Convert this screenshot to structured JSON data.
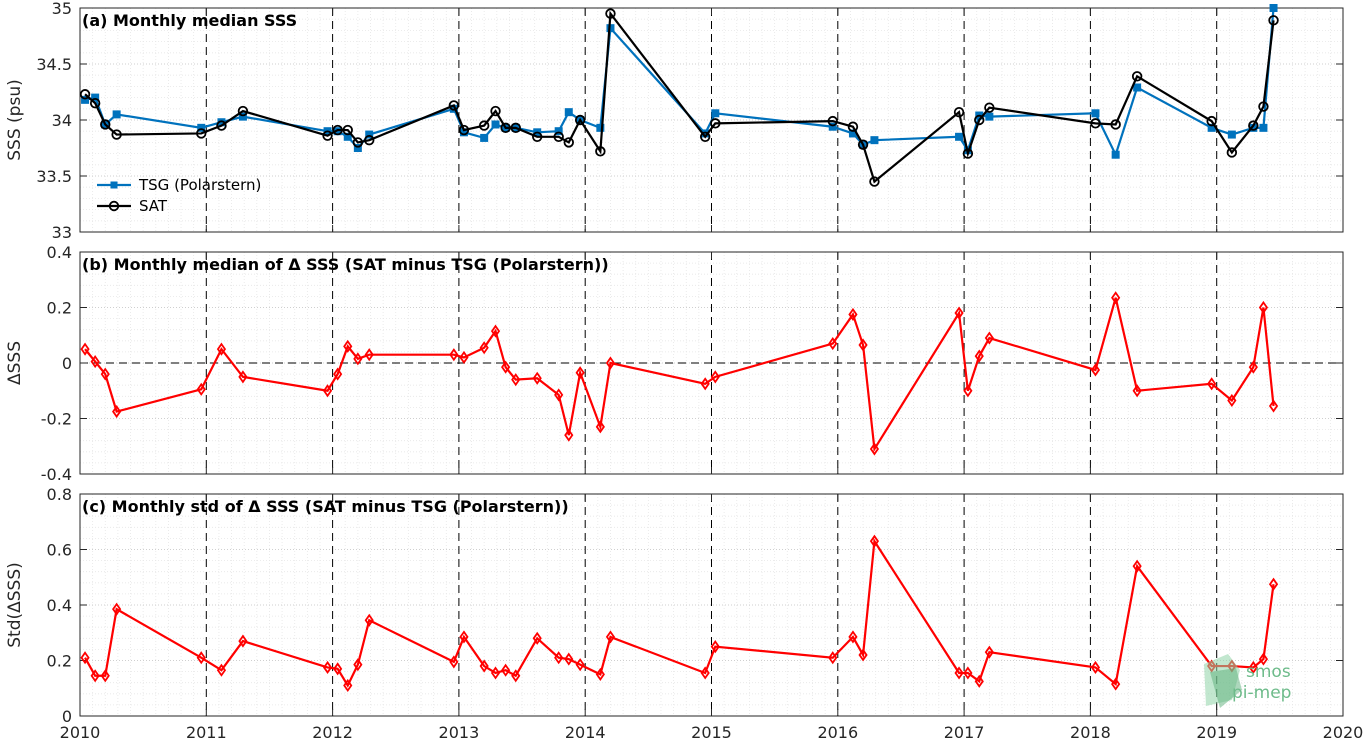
{
  "colors": {
    "tsg": "#0072BD",
    "sat": "#000000",
    "delta": "#FF0000",
    "grid": "#d6d6d6"
  },
  "logo": {
    "line1": "smos",
    "line2": "pi-mep"
  },
  "chart_data": [
    {
      "type": "line",
      "title": "(a) Monthly median SSS",
      "ylabel": "SSS (psu)",
      "xlim": [
        2010,
        2020
      ],
      "ylim": [
        33,
        35
      ],
      "yticks": [
        33,
        33.5,
        34,
        34.5,
        35
      ],
      "ytick_labels": [
        "33",
        "33.5",
        "34",
        "34.5",
        "35"
      ],
      "xticks": [
        2010,
        2011,
        2012,
        2013,
        2014,
        2015,
        2016,
        2017,
        2018,
        2019,
        2020
      ],
      "show_xtick_labels": false,
      "grid": true,
      "legend": "bottom-left",
      "series": [
        {
          "name": "TSG (Polarstern)",
          "color": "#0072BD",
          "marker": "square",
          "x": [
            2010.04,
            2010.12,
            2010.2,
            2010.29,
            2010.96,
            2011.12,
            2011.29,
            2011.96,
            2012.04,
            2012.12,
            2012.2,
            2012.29,
            2012.96,
            2013.04,
            2013.2,
            2013.29,
            2013.37,
            2013.45,
            2013.62,
            2013.79,
            2013.87,
            2013.96,
            2014.12,
            2014.2,
            2014.95,
            2015.03,
            2015.96,
            2016.12,
            2016.2,
            2016.29,
            2016.96,
            2017.03,
            2017.12,
            2017.2,
            2018.04,
            2018.2,
            2018.37,
            2018.96,
            2019.12,
            2019.29,
            2019.37,
            2019.45
          ],
          "y": [
            34.18,
            34.2,
            33.96,
            34.05,
            33.93,
            33.98,
            34.03,
            33.9,
            33.9,
            33.85,
            33.75,
            33.87,
            34.1,
            33.89,
            33.84,
            33.96,
            33.93,
            33.93,
            33.89,
            33.9,
            34.07,
            34.0,
            33.93,
            34.82,
            33.88,
            34.06,
            33.94,
            33.88,
            33.78,
            33.82,
            33.85,
            33.73,
            34.04,
            34.03,
            34.06,
            33.69,
            34.29,
            33.93,
            33.87,
            33.93,
            33.93,
            35.0
          ]
        },
        {
          "name": "SAT",
          "color": "#000000",
          "marker": "circle",
          "x": [
            2010.04,
            2010.12,
            2010.2,
            2010.29,
            2010.96,
            2011.12,
            2011.29,
            2011.96,
            2012.04,
            2012.12,
            2012.2,
            2012.29,
            2012.96,
            2013.04,
            2013.2,
            2013.29,
            2013.37,
            2013.45,
            2013.62,
            2013.79,
            2013.87,
            2013.96,
            2014.12,
            2014.2,
            2014.95,
            2015.03,
            2015.96,
            2016.12,
            2016.2,
            2016.29,
            2016.96,
            2017.03,
            2017.12,
            2017.2,
            2018.04,
            2018.2,
            2018.37,
            2018.96,
            2019.12,
            2019.29,
            2019.37,
            2019.45
          ],
          "y": [
            34.23,
            34.15,
            33.96,
            33.87,
            33.88,
            33.95,
            34.08,
            33.86,
            33.91,
            33.91,
            33.8,
            33.82,
            34.13,
            33.91,
            33.95,
            34.08,
            33.93,
            33.93,
            33.85,
            33.85,
            33.8,
            34.0,
            33.72,
            34.95,
            33.85,
            33.97,
            33.99,
            33.94,
            33.78,
            33.45,
            34.07,
            33.7,
            34.0,
            34.11,
            33.97,
            33.96,
            34.39,
            33.99,
            33.71,
            33.95,
            34.12,
            34.89
          ]
        }
      ]
    },
    {
      "type": "line",
      "title": "(b) Monthly median of Δ SSS (SAT minus TSG (Polarstern))",
      "ylabel": "ΔSSS",
      "xlim": [
        2010,
        2020
      ],
      "ylim": [
        -0.4,
        0.4
      ],
      "yticks": [
        -0.4,
        -0.2,
        0,
        0.2,
        0.4
      ],
      "ytick_labels": [
        "-0.4",
        "-0.2",
        "0",
        "0.2",
        "0.4"
      ],
      "xticks": [
        2010,
        2011,
        2012,
        2013,
        2014,
        2015,
        2016,
        2017,
        2018,
        2019,
        2020
      ],
      "show_xtick_labels": false,
      "grid": true,
      "zero_line": true,
      "series": [
        {
          "color": "#FF0000",
          "marker": "diamond",
          "x": [
            2010.04,
            2010.12,
            2010.2,
            2010.29,
            2010.96,
            2011.12,
            2011.29,
            2011.96,
            2012.04,
            2012.12,
            2012.2,
            2012.29,
            2012.96,
            2013.04,
            2013.2,
            2013.29,
            2013.37,
            2013.45,
            2013.62,
            2013.79,
            2013.87,
            2013.96,
            2014.12,
            2014.2,
            2014.95,
            2015.03,
            2015.96,
            2016.12,
            2016.2,
            2016.29,
            2016.96,
            2017.03,
            2017.12,
            2017.2,
            2018.04,
            2018.2,
            2018.37,
            2018.96,
            2019.12,
            2019.29,
            2019.37,
            2019.45
          ],
          "y": [
            0.05,
            0.005,
            -0.04,
            -0.175,
            -0.095,
            0.05,
            -0.05,
            -0.1,
            -0.04,
            0.06,
            0.015,
            0.03,
            0.03,
            0.02,
            0.055,
            0.115,
            -0.015,
            -0.06,
            -0.055,
            -0.115,
            -0.26,
            -0.035,
            -0.23,
            0.0,
            -0.075,
            -0.05,
            0.07,
            0.175,
            0.065,
            -0.31,
            0.18,
            -0.1,
            0.025,
            0.09,
            -0.025,
            0.235,
            -0.1,
            -0.075,
            -0.135,
            -0.015,
            0.2,
            -0.155
          ]
        }
      ]
    },
    {
      "type": "line",
      "title": "(c) Monthly std of Δ SSS (SAT minus TSG (Polarstern))",
      "ylabel": "Std(ΔSSS)",
      "xlim": [
        2010,
        2020
      ],
      "ylim": [
        0,
        0.8
      ],
      "yticks": [
        0,
        0.2,
        0.4,
        0.6,
        0.8
      ],
      "ytick_labels": [
        "0",
        "0.2",
        "0.4",
        "0.6",
        "0.8"
      ],
      "xticks": [
        2010,
        2011,
        2012,
        2013,
        2014,
        2015,
        2016,
        2017,
        2018,
        2019,
        2020
      ],
      "xtick_labels": [
        "2010",
        "2011",
        "2012",
        "2013",
        "2014",
        "2015",
        "2016",
        "2017",
        "2018",
        "2019",
        "2020"
      ],
      "show_xtick_labels": true,
      "grid": true,
      "series": [
        {
          "color": "#FF0000",
          "marker": "diamond",
          "x": [
            2010.04,
            2010.12,
            2010.2,
            2010.29,
            2010.96,
            2011.12,
            2011.29,
            2011.96,
            2012.04,
            2012.12,
            2012.2,
            2012.29,
            2012.96,
            2013.04,
            2013.2,
            2013.29,
            2013.37,
            2013.45,
            2013.62,
            2013.79,
            2013.87,
            2013.96,
            2014.12,
            2014.2,
            2014.95,
            2015.03,
            2015.96,
            2016.12,
            2016.2,
            2016.29,
            2016.96,
            2017.03,
            2017.12,
            2017.2,
            2018.04,
            2018.2,
            2018.37,
            2018.96,
            2019.12,
            2019.29,
            2019.37,
            2019.45
          ],
          "y": [
            0.21,
            0.145,
            0.145,
            0.385,
            0.21,
            0.165,
            0.27,
            0.175,
            0.17,
            0.11,
            0.185,
            0.345,
            0.195,
            0.285,
            0.18,
            0.155,
            0.165,
            0.145,
            0.28,
            0.21,
            0.205,
            0.185,
            0.15,
            0.285,
            0.155,
            0.25,
            0.21,
            0.285,
            0.22,
            0.63,
            0.155,
            0.155,
            0.125,
            0.23,
            0.175,
            0.115,
            0.54,
            0.18,
            0.18,
            0.175,
            0.205,
            0.475
          ]
        }
      ]
    }
  ]
}
